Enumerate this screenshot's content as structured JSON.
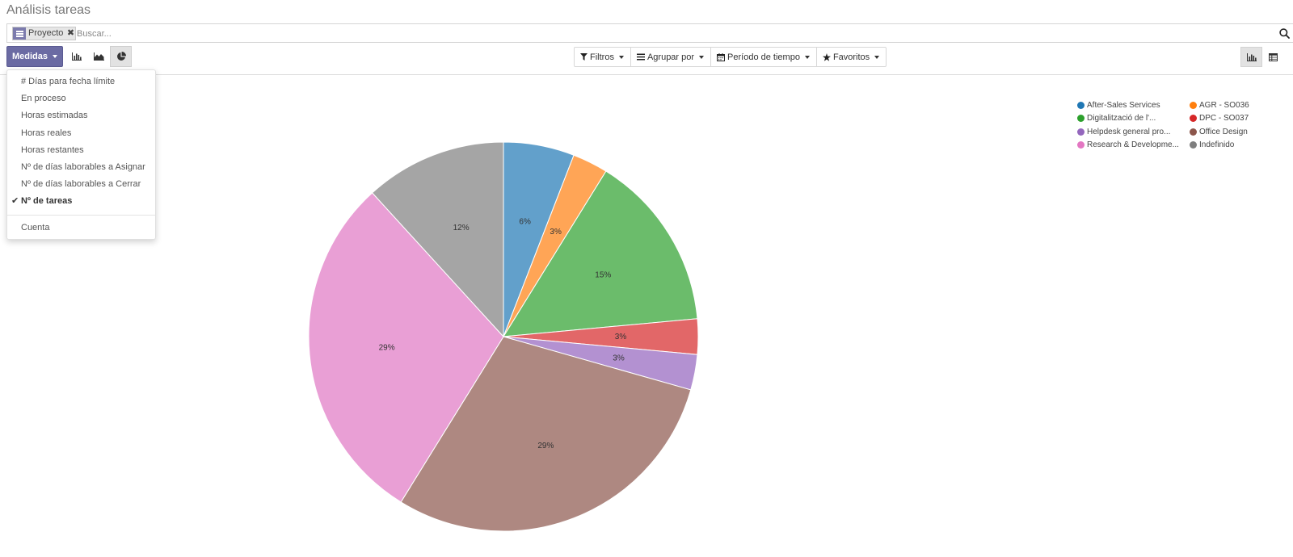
{
  "page": {
    "title": "Análisis tareas"
  },
  "search": {
    "facet_label": "Proyecto",
    "facet_remove": "✖",
    "placeholder": "Buscar..."
  },
  "toolbar": {
    "measures_label": "Medidas",
    "filters_label": "Filtros",
    "group_by_label": "Agrupar por",
    "period_label": "Período de tiempo",
    "favorites_label": "Favoritos",
    "chart_types": [
      "bar-chart-icon",
      "line-chart-icon",
      "pie-chart-icon"
    ],
    "active_chart_type": "pie-chart-icon",
    "views": [
      "graph-view-icon",
      "pivot-view-icon"
    ],
    "active_view": "graph-view-icon"
  },
  "measures_menu": {
    "items": [
      {
        "label": "# Días para fecha límite",
        "selected": false
      },
      {
        "label": "En proceso",
        "selected": false
      },
      {
        "label": "Horas estimadas",
        "selected": false
      },
      {
        "label": "Horas reales",
        "selected": false
      },
      {
        "label": "Horas restantes",
        "selected": false
      },
      {
        "label": "Nº de días laborables a Asignar",
        "selected": false
      },
      {
        "label": "Nº de días laborables a Cerrar",
        "selected": false
      },
      {
        "label": "Nº de tareas",
        "selected": true
      }
    ],
    "extra_item": "Cuenta",
    "check_glyph": "✔"
  },
  "chart_data": {
    "type": "pie",
    "title": "",
    "legend_position": "top-right",
    "categories": [
      "After-Sales Services",
      "AGR - SO036",
      "Digitalització de l'...",
      "DPC - SO037",
      "Helpdesk general pro...",
      "Office Design",
      "Research & Developme...",
      "Indefinido"
    ],
    "values": [
      2,
      1,
      5,
      1,
      1,
      10,
      10,
      4
    ],
    "labels": [
      "6%",
      "3%",
      "15%",
      "3%",
      "3%",
      "29%",
      "29%",
      "12%"
    ],
    "legend_colors": [
      "#1f77b4",
      "#ff7f0e",
      "#2ca02c",
      "#d62728",
      "#9467bd",
      "#8c564b",
      "#e377c2",
      "#7f7f7f"
    ],
    "slice_colors": [
      "#62a0cb",
      "#ffa556",
      "#6bbc6b",
      "#e26768",
      "#b391d1",
      "#ae8881",
      "#e99fd5",
      "#a5a5a5"
    ]
  }
}
